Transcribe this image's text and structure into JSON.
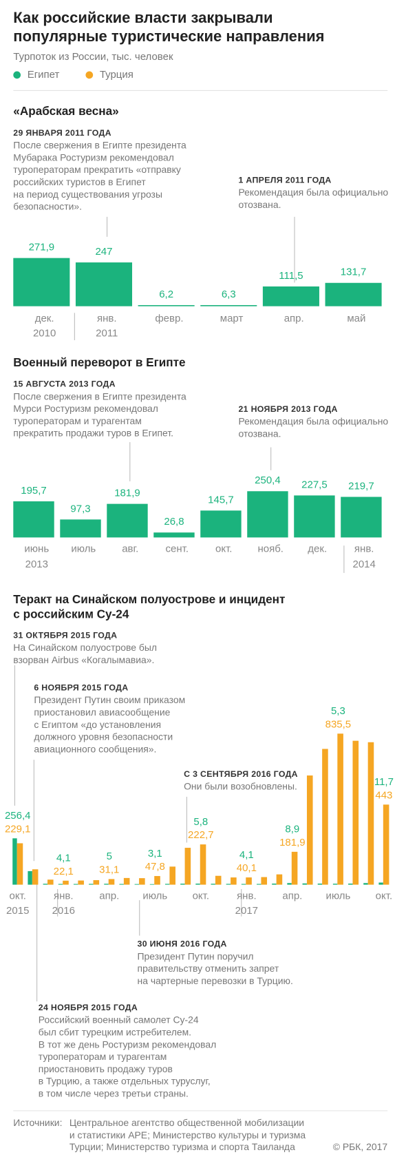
{
  "header": {
    "title_lines": [
      "Как российские власти закрывали",
      "популярные туристические направления"
    ],
    "subtitle": "Турпоток из России, тыс. человек"
  },
  "chart_data": [
    {
      "type": "bar",
      "title_lines": [
        "«Арабская весна»"
      ],
      "categories": [
        "дек.",
        "янв.",
        "февр.",
        "март",
        "апр.",
        "май"
      ],
      "year_labels": [
        "2010",
        "2011",
        null,
        null,
        null,
        null
      ],
      "values": [
        271.9,
        247,
        6.2,
        6.3,
        111.5,
        131.7
      ],
      "value_labels": [
        "271,9",
        "247",
        "6,2",
        "6,3",
        "111,5",
        "131,7"
      ],
      "color": "#1bb37d",
      "ylim": [
        0,
        300
      ],
      "annotations": [
        {
          "date": "29 ЯНВАРЯ 2011 ГОДА",
          "lines": [
            "После свержения в Египте президента",
            "Мубарака Ростуризм рекомендовал",
            "туроператорам прекратить «отправку",
            "российских туристов в Египет",
            "на период существования угрозы",
            "безопасности»."
          ]
        },
        {
          "date": "1 АПРЕЛЯ 2011 ГОДА",
          "lines": [
            "Рекомендация была официально",
            "отозвана."
          ]
        }
      ]
    },
    {
      "type": "bar",
      "title_lines": [
        "Военный переворот в Египте"
      ],
      "categories": [
        "июнь",
        "июль",
        "авг.",
        "сент.",
        "окт.",
        "нояб.",
        "дек.",
        "янв."
      ],
      "year_labels": [
        "2013",
        null,
        null,
        null,
        null,
        null,
        null,
        "2014"
      ],
      "values": [
        195.7,
        97.3,
        181.9,
        26.8,
        145.7,
        250.4,
        227.5,
        219.7
      ],
      "value_labels": [
        "195,7",
        "97,3",
        "181,9",
        "26,8",
        "145,7",
        "250,4",
        "227,5",
        "219,7"
      ],
      "color": "#1bb37d",
      "ylim": [
        0,
        280
      ],
      "annotations": [
        {
          "date": "15 АВГУСТА 2013 ГОДА",
          "lines": [
            "После свержения в Египте президента",
            "Мурси Ростуризм рекомендовал",
            "туроператорам и турагентам",
            "прекратить продажи туров в Египет."
          ]
        },
        {
          "date": "21 НОЯБРЯ 2013 ГОДА",
          "lines": [
            "Рекомендация была официально",
            "отозвана."
          ]
        }
      ]
    },
    {
      "type": "bar",
      "title_lines": [
        "Теракт на Синайском полуострове и инцидент",
        "с российским Су-24"
      ],
      "categories": [
        "окт.",
        null,
        null,
        "янв.",
        null,
        null,
        "апр.",
        null,
        null,
        "июль",
        null,
        null,
        "окт.",
        null,
        null,
        "янв.",
        null,
        null,
        "апр.",
        null,
        null,
        "июль",
        null,
        null,
        "окт."
      ],
      "year_labels": [
        "2015",
        null,
        null,
        "2016",
        null,
        null,
        null,
        null,
        null,
        null,
        null,
        null,
        null,
        null,
        null,
        "2017",
        null,
        null,
        null,
        null,
        null,
        null,
        null,
        null,
        null
      ],
      "series": [
        {
          "name": "Египет",
          "color": "#1bb37d",
          "values": [
            256.4,
            75,
            5,
            4.1,
            4,
            4.5,
            5,
            4,
            3.5,
            3.1,
            4.5,
            5.5,
            5.8,
            5,
            4.5,
            4.1,
            4.2,
            6,
            8.9,
            7,
            6,
            5.3,
            6,
            9,
            11.7
          ],
          "value_labels": [
            "256,4",
            null,
            null,
            "4,1",
            null,
            null,
            "5",
            null,
            null,
            "3,1",
            null,
            null,
            "5,8",
            null,
            null,
            "4,1",
            null,
            null,
            "8,9",
            null,
            null,
            "5,3",
            null,
            null,
            "11,7"
          ]
        },
        {
          "name": "Турция",
          "color": "#f5a623",
          "values": [
            229.1,
            85,
            28,
            22.1,
            23,
            25,
            31.1,
            37,
            36,
            47.8,
            100,
            204,
            222.7,
            49,
            40,
            40.1,
            42,
            57,
            181.9,
            604,
            751,
            835.5,
            796,
            788,
            443
          ],
          "value_labels": [
            "229,1",
            null,
            null,
            "22,1",
            null,
            null,
            "31,1",
            null,
            null,
            "47,8",
            null,
            null,
            "222,7",
            null,
            null,
            "40,1",
            null,
            null,
            "181,9",
            null,
            null,
            "835,5",
            null,
            null,
            "443"
          ]
        }
      ],
      "ylim": [
        0,
        850
      ],
      "annotations": [
        {
          "date": "31 ОКТЯБРЯ 2015 ГОДА",
          "lines": [
            "На Синайском полуострове был",
            "взорван Airbus «Когалымавиа»."
          ]
        },
        {
          "date": "6 НОЯБРЯ 2015 ГОДА",
          "lines": [
            "Президент Путин своим приказом",
            "приостановил авиасообщение",
            "с Египтом «до установления",
            "должного уровня безопасности",
            "авиационного сообщения»."
          ]
        },
        {
          "date": "С 3 СЕНТЯБРЯ 2016 ГОДА",
          "lines": [
            "Они были возобновлены."
          ]
        },
        {
          "date": "30 ИЮНЯ 2016 ГОДА",
          "lines": [
            "Президент Путин поручил",
            "правительству отменить запрет",
            "на чартерные перевозки в Турцию."
          ]
        },
        {
          "date": "24 НОЯБРЯ 2015 ГОДА",
          "lines": [
            "Российский военный самолет Су-24",
            "был сбит турецким истребителем.",
            "В тот же день Ростуризм рекомендовал",
            "туроператорам и турагентам",
            "приостановить продажу туров",
            "в Турцию, а также отдельных туруслуг,",
            "в том числе через третьи страны."
          ]
        }
      ]
    }
  ],
  "footer": {
    "source_label": "Источники:",
    "source_lines": [
      "Центральное агентство общественной мобилизации",
      "и статистики АРЕ; Министерство культуры и туризма",
      "Турции; Министерство туризма и спорта Таиланда"
    ],
    "copyright": "© РБК, 2017"
  }
}
